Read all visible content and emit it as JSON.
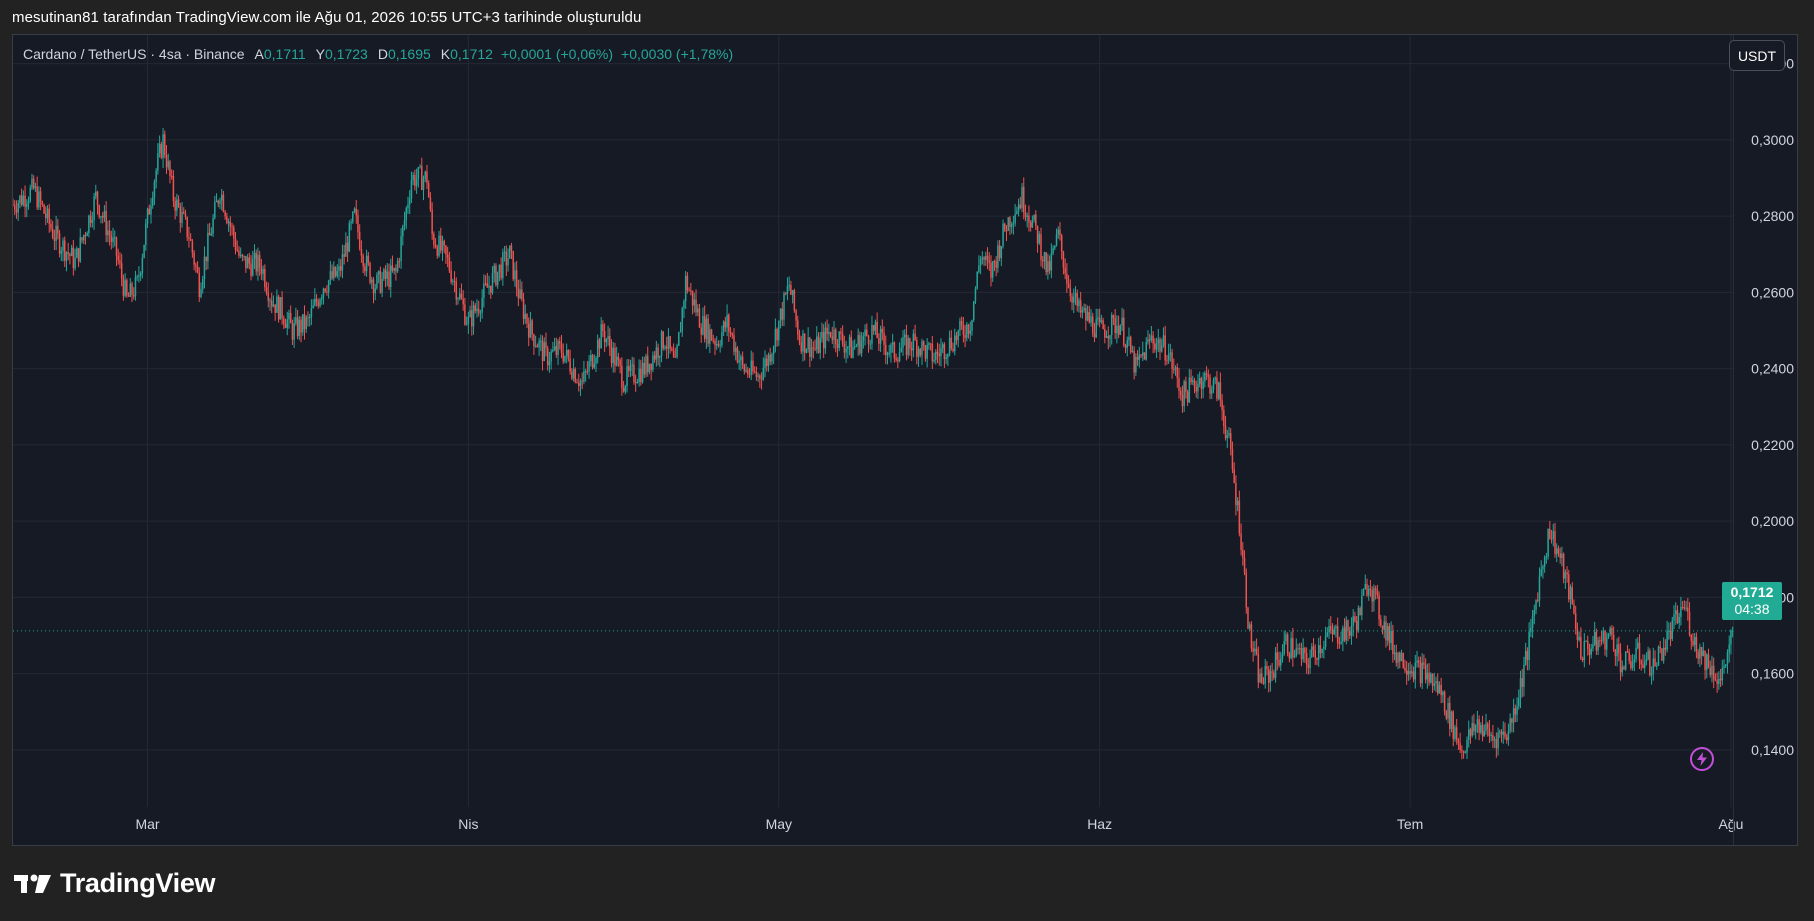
{
  "caption": "mesutinan81 tarafından TradingView.com ile Ağu 01, 2026 10:55 UTC+3 tarihinde oluşturuldu",
  "legend": {
    "symbol": "Cardano / TetherUS · 4sa · Binance",
    "open_label": "A",
    "open_value": "0,1711",
    "high_label": "Y",
    "high_value": "0,1723",
    "low_label": "D",
    "low_value": "0,1695",
    "close_label": "K",
    "close_value": "0,1712",
    "change_1": "+0,0001 (+0,06%)",
    "change_2": "+0,0030 (+1,78%)"
  },
  "currency_button": "USDT",
  "price_tag": {
    "price": "0,1712",
    "countdown": "04:38"
  },
  "logo_text": "TradingView",
  "colors": {
    "up": "#26a69a",
    "down": "#ef5350",
    "background": "#161a25",
    "grid": "#252935",
    "axis_text": "#d1d4dc",
    "tag": "#22ab94",
    "bolt": "#c24fd7"
  },
  "icons": {
    "bolt": "lightning-bolt-icon",
    "logo": "tradingview-logo-icon"
  },
  "chart_data": {
    "type": "candlestick",
    "title": "Cardano / TetherUS · 4sa · Binance",
    "y_axis_side": "right",
    "ylim": [
      0.125,
      0.3275
    ],
    "y_ticks": [
      0.14,
      0.16,
      0.18,
      0.2,
      0.22,
      0.24,
      0.26,
      0.28,
      0.3,
      0.32
    ],
    "y_tick_labels": [
      "0,1400",
      "0,1600",
      "0,1800",
      "0,2000",
      "0,2200",
      "0,2400",
      "0,2600",
      "0,2800",
      "0,3000",
      "0,3200"
    ],
    "x_tick_labels": [
      "Mar",
      "Nis",
      "May",
      "Haz",
      "Tem",
      "Ağu"
    ],
    "x_tick_days": [
      0,
      31,
      61,
      92,
      122,
      153
    ],
    "x_range_days": [
      -13,
      153.2
    ],
    "last_price": 0.1712,
    "grid": true,
    "price_path_key_points": [
      [
        -13,
        0.283
      ],
      [
        -11,
        0.287
      ],
      [
        -9,
        0.275
      ],
      [
        -7,
        0.268
      ],
      [
        -5,
        0.285
      ],
      [
        -3,
        0.27
      ],
      [
        -2,
        0.258
      ],
      [
        -1,
        0.262
      ],
      [
        0.5,
        0.288
      ],
      [
        1.5,
        0.3
      ],
      [
        2.5,
        0.285
      ],
      [
        4,
        0.275
      ],
      [
        5,
        0.262
      ],
      [
        7,
        0.287
      ],
      [
        9,
        0.268
      ],
      [
        11,
        0.267
      ],
      [
        12,
        0.258
      ],
      [
        13,
        0.255
      ],
      [
        14,
        0.25
      ],
      [
        15.5,
        0.252
      ],
      [
        17,
        0.262
      ],
      [
        18.5,
        0.265
      ],
      [
        20,
        0.28
      ],
      [
        21,
        0.268
      ],
      [
        22,
        0.262
      ],
      [
        24,
        0.265
      ],
      [
        25.5,
        0.29
      ],
      [
        27,
        0.29
      ],
      [
        27.5,
        0.275
      ],
      [
        29,
        0.268
      ],
      [
        30,
        0.26
      ],
      [
        31,
        0.252
      ],
      [
        33,
        0.262
      ],
      [
        35,
        0.27
      ],
      [
        36,
        0.258
      ],
      [
        37,
        0.25
      ],
      [
        38.5,
        0.243
      ],
      [
        40,
        0.245
      ],
      [
        42,
        0.236
      ],
      [
        44,
        0.25
      ],
      [
        46,
        0.237
      ],
      [
        48,
        0.24
      ],
      [
        50,
        0.248
      ],
      [
        51,
        0.24
      ],
      [
        52,
        0.263
      ],
      [
        53.5,
        0.252
      ],
      [
        55,
        0.247
      ],
      [
        56,
        0.252
      ],
      [
        57.5,
        0.24
      ],
      [
        59,
        0.238
      ],
      [
        60,
        0.243
      ],
      [
        61,
        0.252
      ],
      [
        62,
        0.262
      ],
      [
        63,
        0.248
      ],
      [
        64.5,
        0.245
      ],
      [
        66,
        0.25
      ],
      [
        68,
        0.245
      ],
      [
        70,
        0.25
      ],
      [
        72,
        0.244
      ],
      [
        74,
        0.247
      ],
      [
        76,
        0.243
      ],
      [
        78,
        0.248
      ],
      [
        79.5,
        0.252
      ],
      [
        80.5,
        0.27
      ],
      [
        81.5,
        0.265
      ],
      [
        83,
        0.278
      ],
      [
        84.5,
        0.285
      ],
      [
        86,
        0.275
      ],
      [
        87,
        0.265
      ],
      [
        88,
        0.275
      ],
      [
        89,
        0.262
      ],
      [
        90,
        0.255
      ],
      [
        92,
        0.25
      ],
      [
        94,
        0.252
      ],
      [
        95.5,
        0.24
      ],
      [
        97,
        0.248
      ],
      [
        98.5,
        0.245
      ],
      [
        100,
        0.233
      ],
      [
        102,
        0.238
      ],
      [
        103.5,
        0.234
      ],
      [
        104.5,
        0.22
      ],
      [
        105.5,
        0.2
      ],
      [
        106.5,
        0.17
      ],
      [
        107.5,
        0.158
      ],
      [
        108.5,
        0.16
      ],
      [
        110,
        0.168
      ],
      [
        112,
        0.163
      ],
      [
        114,
        0.17
      ],
      [
        116,
        0.171
      ],
      [
        117,
        0.175
      ],
      [
        118,
        0.185
      ],
      [
        119,
        0.176
      ],
      [
        120.5,
        0.166
      ],
      [
        122,
        0.162
      ],
      [
        123.5,
        0.16
      ],
      [
        125,
        0.155
      ],
      [
        126,
        0.147
      ],
      [
        127,
        0.14
      ],
      [
        128.5,
        0.147
      ],
      [
        130,
        0.143
      ],
      [
        131.5,
        0.145
      ],
      [
        132.5,
        0.155
      ],
      [
        133.5,
        0.168
      ],
      [
        134.5,
        0.185
      ],
      [
        135.5,
        0.198
      ],
      [
        136.5,
        0.19
      ],
      [
        137.5,
        0.18
      ],
      [
        138.5,
        0.166
      ],
      [
        140,
        0.168
      ],
      [
        141.5,
        0.17
      ],
      [
        142.5,
        0.162
      ],
      [
        144,
        0.165
      ],
      [
        145.5,
        0.162
      ],
      [
        147,
        0.17
      ],
      [
        148.5,
        0.178
      ],
      [
        149.5,
        0.168
      ],
      [
        151,
        0.162
      ],
      [
        152,
        0.158
      ],
      [
        153.2,
        0.1712
      ]
    ]
  }
}
